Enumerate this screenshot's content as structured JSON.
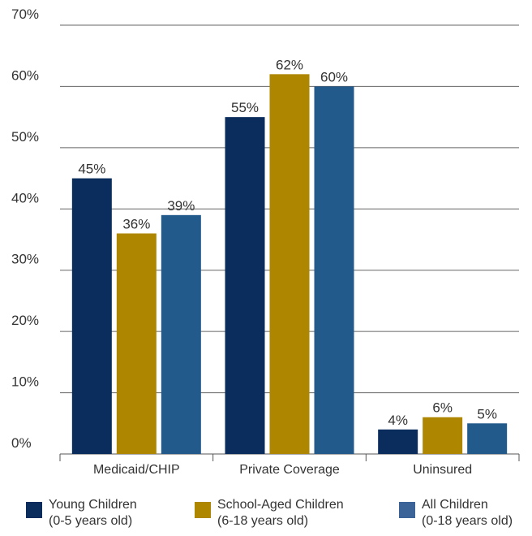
{
  "chart_data": {
    "type": "bar",
    "categories": [
      "Medicaid/CHIP",
      "Private Coverage",
      "Uninsured"
    ],
    "series": [
      {
        "name": "Young Children",
        "note": "(0-5 years old)",
        "values": [
          45,
          55,
          4
        ],
        "labels": [
          "45%",
          "55%",
          "4%"
        ],
        "color": "#0a2d5e"
      },
      {
        "name": "School-Aged Children",
        "note": "(6-18 years old)",
        "values": [
          36,
          62,
          6
        ],
        "labels": [
          "36%",
          "62%",
          "6%"
        ],
        "color": "#ae8600"
      },
      {
        "name": "All Children",
        "note": "(0-18 years old)",
        "values": [
          39,
          60,
          5
        ],
        "labels": [
          "39%",
          "60%",
          "5%"
        ],
        "color": "#235a8c"
      }
    ],
    "yticks": [
      "0%",
      "10%",
      "20%",
      "30%",
      "40%",
      "50%",
      "60%",
      "70%"
    ],
    "ylim": [
      0,
      70
    ],
    "grid": true,
    "legend_position": "bottom"
  }
}
